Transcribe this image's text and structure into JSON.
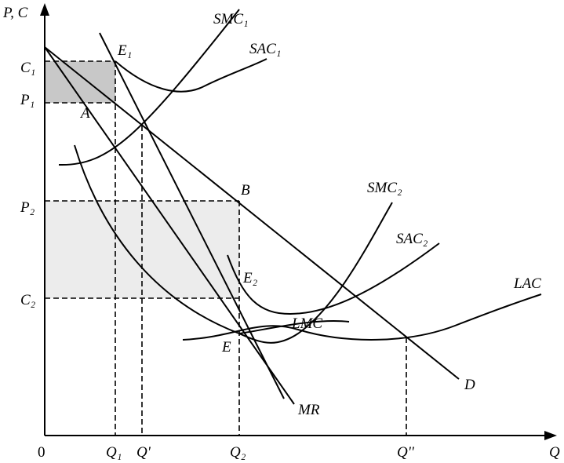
{
  "axes": {
    "y_label": "P, C",
    "x_label": "Q",
    "origin": "0"
  },
  "y_labels": {
    "c1": "C₁",
    "p1": "P₁",
    "p2": "P₂",
    "c2": "C₂"
  },
  "x_labels": {
    "q1": "Q₁",
    "qp": "Q'",
    "q2": "Q₂",
    "qpp": "Q''"
  },
  "points": {
    "e1": "E₁",
    "a": "A",
    "b": "B",
    "e2": "E₂",
    "e": "E"
  },
  "curves": {
    "smc1": "SMC₁",
    "sac1": "SAC₁",
    "smc2": "SMC₂",
    "sac2": "SAC₂",
    "lac": "LAC",
    "lmc": "LMC",
    "d": "D",
    "mr": "MR"
  }
}
